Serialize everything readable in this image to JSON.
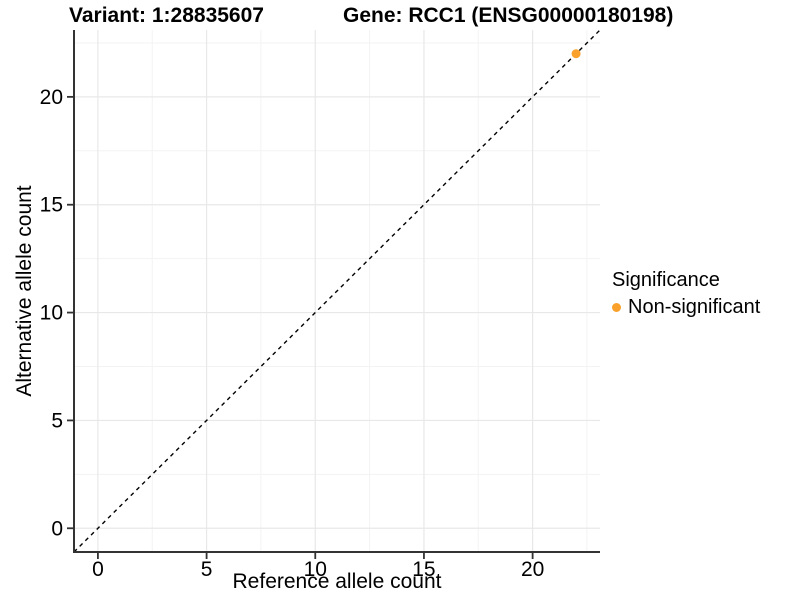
{
  "header": {
    "variant_title": "Variant: 1:28835607",
    "gene_title": "Gene: RCC1 (ENSG00000180198)"
  },
  "chart_data": {
    "type": "scatter",
    "title_left": "Variant: 1:28835607",
    "title_right": "Gene: RCC1 (ENSG00000180198)",
    "xlabel": "Reference allele count",
    "ylabel": "Alternative allele count",
    "xlim": [
      -1.1,
      23.1
    ],
    "ylim": [
      -1.1,
      23.1
    ],
    "xticks": [
      0,
      5,
      10,
      15,
      20
    ],
    "yticks": [
      0,
      5,
      10,
      15,
      20
    ],
    "xtick_labels": [
      "0",
      "5",
      "10",
      "15",
      "20"
    ],
    "ytick_labels": [
      "0",
      "5",
      "10",
      "15",
      "20"
    ],
    "minor_step": 2.5,
    "grid": true,
    "reference_line": {
      "type": "identity",
      "style": "dashed",
      "color": "#000000"
    },
    "series": [
      {
        "name": "Non-significant",
        "color": "#F9A12B",
        "points": [
          {
            "x": 22,
            "y": 22
          }
        ]
      }
    ],
    "legend": {
      "title": "Significance",
      "position": "right",
      "items": [
        {
          "label": "Non-significant",
          "color": "#F9A12B"
        }
      ]
    },
    "style": {
      "axis_line_color": "#333333",
      "tick_color": "#333333",
      "grid_major_color": "#E8E8E8",
      "grid_minor_color": "#F3F3F3",
      "background": "#FFFFFF"
    }
  }
}
